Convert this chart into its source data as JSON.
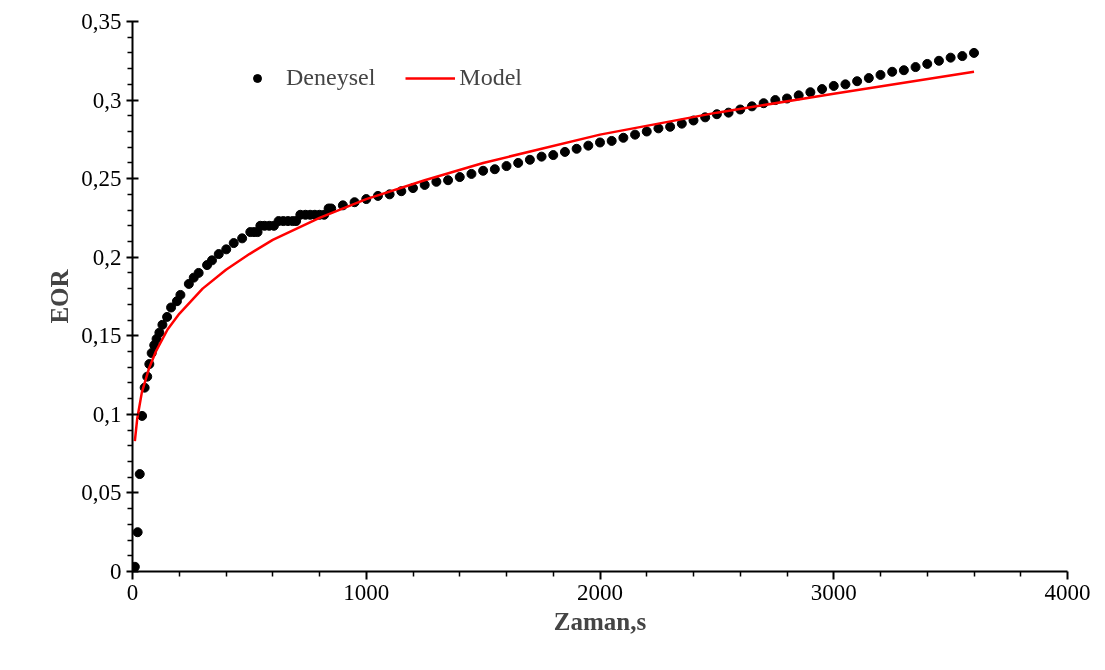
{
  "chart_data": {
    "type": "scatter",
    "xlabel": "Zaman,s",
    "ylabel": "EOR",
    "xlim": [
      0,
      4000
    ],
    "ylim": [
      0,
      0.35
    ],
    "xticks": [
      0,
      1000,
      2000,
      3000,
      4000
    ],
    "yticks": [
      0,
      {
        "value": 0.05,
        "label": "0,05"
      },
      {
        "value": 0.1,
        "label": "0,1"
      },
      {
        "value": 0.15,
        "label": "0,15"
      },
      {
        "value": 0.2,
        "label": "0,2"
      },
      {
        "value": 0.25,
        "label": "0,25"
      },
      {
        "value": 0.3,
        "label": "0,3"
      },
      {
        "value": 0.35,
        "label": "0,35"
      }
    ],
    "grid": false,
    "legend": "top left",
    "series": [
      {
        "name": "Deneysel",
        "marker": "circle",
        "color": "#000000",
        "x": [
          10,
          22,
          31,
          41,
          52,
          63,
          72,
          82,
          93,
          103,
          115,
          128,
          148,
          165,
          190,
          205,
          241,
          262,
          283,
          319,
          340,
          369,
          401,
          433,
          469,
          504,
          520,
          535,
          547,
          565,
          585,
          605,
          625,
          645,
          665,
          685,
          700,
          718,
          740,
          760,
          780,
          800,
          820,
          839,
          850,
          900,
          950,
          1000,
          1050,
          1100,
          1150,
          1200,
          1250,
          1300,
          1350,
          1400,
          1450,
          1500,
          1550,
          1600,
          1650,
          1700,
          1750,
          1800,
          1850,
          1900,
          1950,
          2000,
          2050,
          2100,
          2150,
          2200,
          2250,
          2300,
          2350,
          2400,
          2450,
          2500,
          2550,
          2600,
          2650,
          2700,
          2750,
          2800,
          2850,
          2900,
          2950,
          3000,
          3050,
          3100,
          3150,
          3200,
          3250,
          3300,
          3350,
          3400,
          3450,
          3500,
          3550,
          3600
        ],
        "values": [
          0.003,
          0.025,
          0.062,
          0.099,
          0.117,
          0.124,
          0.132,
          0.139,
          0.144,
          0.148,
          0.152,
          0.157,
          0.162,
          0.168,
          0.172,
          0.176,
          0.183,
          0.187,
          0.19,
          0.195,
          0.198,
          0.202,
          0.205,
          0.209,
          0.212,
          0.216,
          0.216,
          0.216,
          0.22,
          0.22,
          0.22,
          0.22,
          0.223,
          0.223,
          0.223,
          0.223,
          0.223,
          0.227,
          0.227,
          0.227,
          0.227,
          0.227,
          0.227,
          0.231,
          0.231,
          0.233,
          0.235,
          0.237,
          0.239,
          0.24,
          0.242,
          0.244,
          0.246,
          0.248,
          0.249,
          0.251,
          0.253,
          0.255,
          0.256,
          0.258,
          0.26,
          0.262,
          0.264,
          0.265,
          0.267,
          0.269,
          0.271,
          0.273,
          0.274,
          0.276,
          0.278,
          0.28,
          0.282,
          0.283,
          0.285,
          0.287,
          0.289,
          0.291,
          0.292,
          0.294,
          0.296,
          0.298,
          0.3,
          0.301,
          0.303,
          0.305,
          0.307,
          0.309,
          0.31,
          0.312,
          0.314,
          0.316,
          0.318,
          0.319,
          0.321,
          0.323,
          0.325,
          0.327,
          0.328,
          0.33
        ]
      },
      {
        "name": "Model",
        "type": "line",
        "color": "#ff0000",
        "line_style": "solid",
        "x": [
          10,
          20,
          40,
          70,
          100,
          150,
          200,
          300,
          400,
          500,
          600,
          800,
          1000,
          1250,
          1500,
          2000,
          2500,
          3000,
          3600
        ],
        "values": [
          0.083,
          0.097,
          0.114,
          0.129,
          0.14,
          0.154,
          0.164,
          0.18,
          0.192,
          0.202,
          0.211,
          0.225,
          0.237,
          0.249,
          0.26,
          0.278,
          0.292,
          0.304,
          0.318
        ]
      }
    ]
  }
}
